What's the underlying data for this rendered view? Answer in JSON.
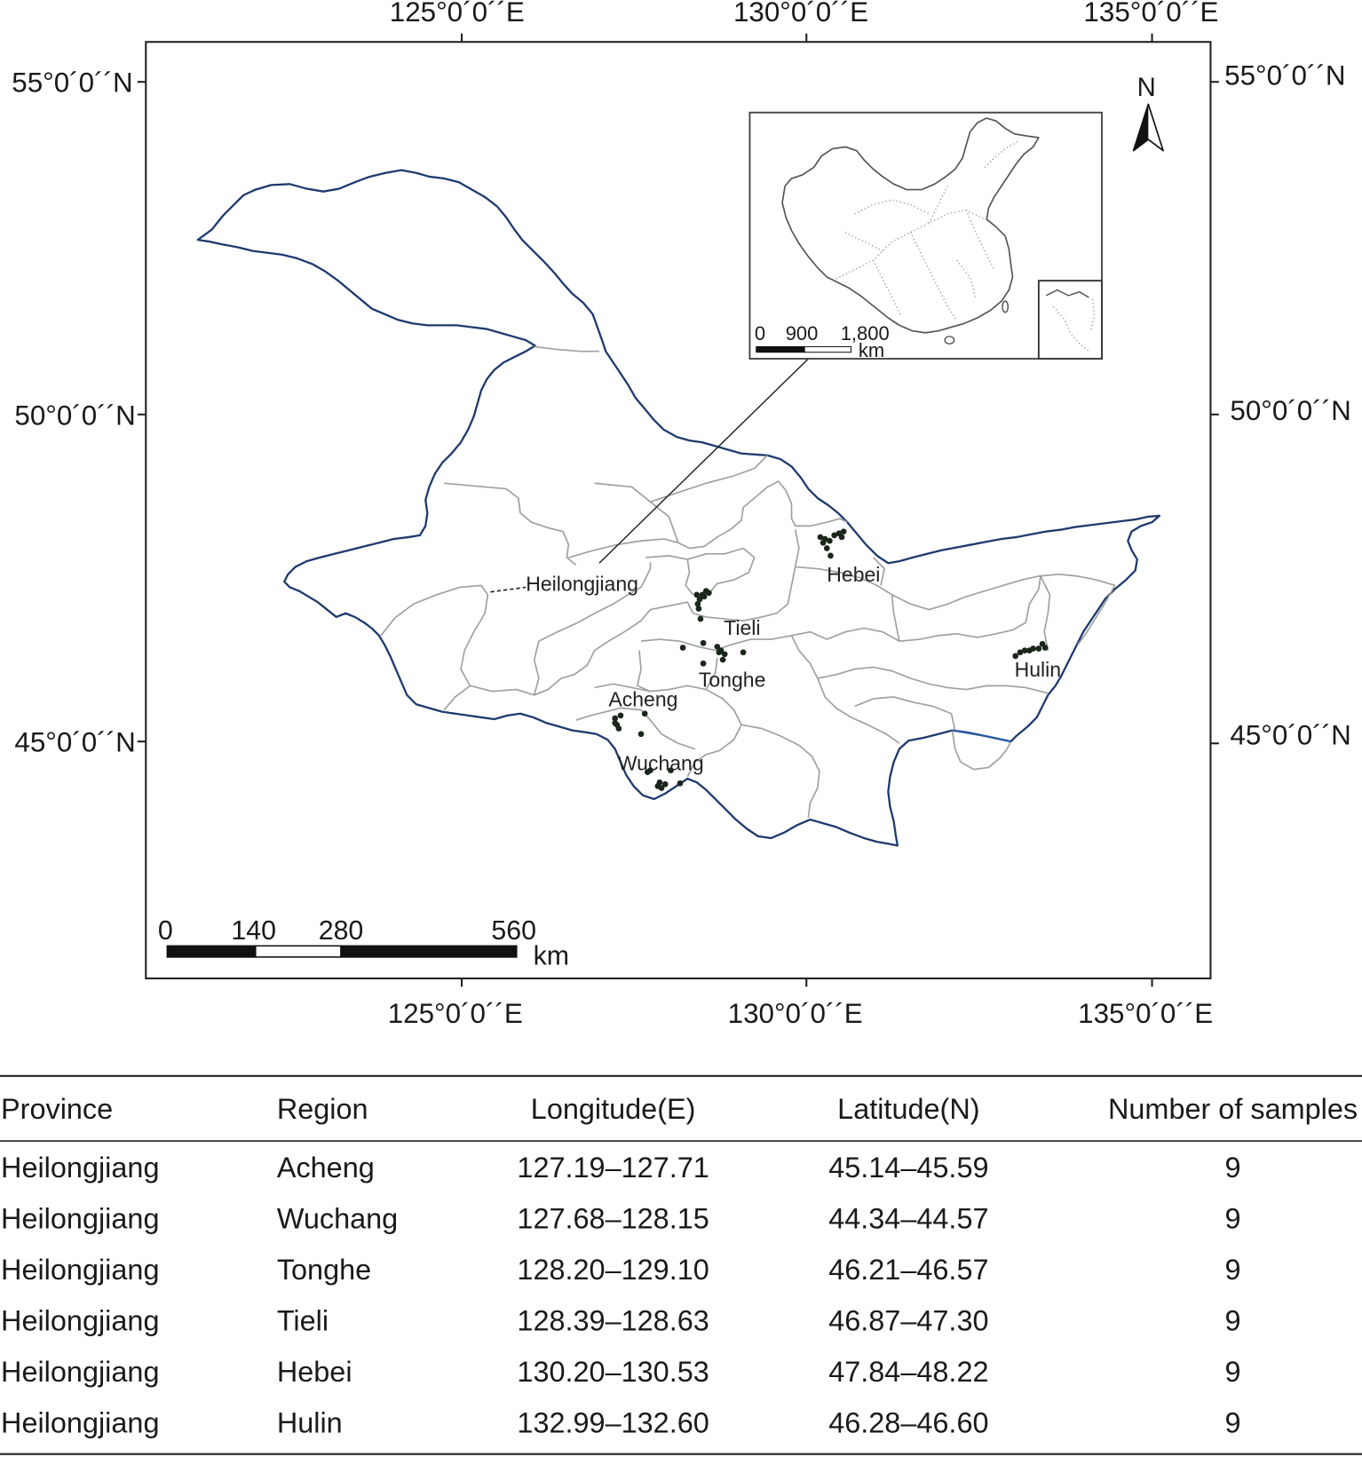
{
  "map": {
    "top_longitude_labels": [
      "125°0´0´´E",
      "130°0´0´´E",
      "135°0´0´´E"
    ],
    "bottom_longitude_labels": [
      "125°0´0´´E",
      "130°0´0´´E",
      "135°0´0´´E"
    ],
    "left_latitude_labels": [
      "55°0´0´´N",
      "50°0´0´´N",
      "45°0´0´´N"
    ],
    "right_latitude_labels": [
      "55°0´0´´N",
      "50°0´0´´N",
      "45°0´0´´N"
    ],
    "north_arrow_label": "N",
    "province_label": "Heilongjiang",
    "region_labels": {
      "hebei": "Hebei",
      "tieli": "Tieli",
      "tonghe": "Tonghe",
      "acheng": "Acheng",
      "wuchang": "Wuchang",
      "hulin": "Hulin"
    },
    "scale_bar": {
      "ticks": [
        "0",
        "140",
        "280",
        "560"
      ],
      "unit": "km"
    },
    "colors": {
      "province_border": "#1e3a6e",
      "county_border": "#a0a0a0",
      "sample_point": "#1b261b"
    }
  },
  "inset": {
    "scale_bar": {
      "ticks": [
        "0",
        "900",
        "1,800"
      ],
      "unit": "km"
    }
  },
  "table": {
    "headers": {
      "province": "Province",
      "region": "Region",
      "longitude": "Longitude(E)",
      "latitude": "Latitude(N)",
      "samples": "Number of samples"
    },
    "rows": [
      {
        "province": "Heilongjiang",
        "region": "Acheng",
        "longitude": "127.19–127.71",
        "latitude": "45.14–45.59",
        "samples": "9"
      },
      {
        "province": "Heilongjiang",
        "region": "Wuchang",
        "longitude": "127.68–128.15",
        "latitude": "44.34–44.57",
        "samples": "9"
      },
      {
        "province": "Heilongjiang",
        "region": "Tonghe",
        "longitude": "128.20–129.10",
        "latitude": "46.21–46.57",
        "samples": "9"
      },
      {
        "province": "Heilongjiang",
        "region": "Tieli",
        "longitude": "128.39–128.63",
        "latitude": "46.87–47.30",
        "samples": "9"
      },
      {
        "province": "Heilongjiang",
        "region": "Hebei",
        "longitude": "130.20–130.53",
        "latitude": "47.84–48.22",
        "samples": "9"
      },
      {
        "province": "Heilongjiang",
        "region": "Hulin",
        "longitude": "132.99–132.60",
        "latitude": "46.28–46.60",
        "samples": "9"
      }
    ]
  }
}
